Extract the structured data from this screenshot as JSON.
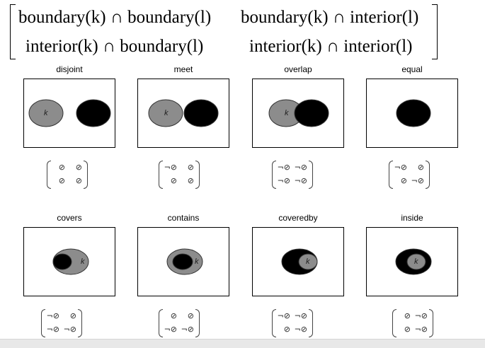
{
  "header": {
    "row0": [
      "boundary(k) ∩ boundary(l)",
      "boundary(k) ∩ interior(l)"
    ],
    "row1": [
      "interior(k) ∩ boundary(l)",
      "interior(k) ∩ interior(l)"
    ]
  },
  "object_label": "k",
  "panels": [
    {
      "title": "disjoint",
      "matrix": [
        "⊘",
        "⊘",
        "⊘",
        "⊘"
      ]
    },
    {
      "title": "meet",
      "matrix": [
        "¬⊘",
        "⊘",
        "⊘",
        "⊘"
      ]
    },
    {
      "title": "overlap",
      "matrix": [
        "¬⊘",
        "¬⊘",
        "¬⊘",
        "¬⊘"
      ]
    },
    {
      "title": "equal",
      "matrix": [
        "¬⊘",
        "⊘",
        "⊘",
        "¬⊘"
      ]
    },
    {
      "title": "covers",
      "matrix": [
        "¬⊘",
        "⊘",
        "¬⊘",
        "¬⊘"
      ]
    },
    {
      "title": "contains",
      "matrix": [
        "⊘",
        "⊘",
        "¬⊘",
        "¬⊘"
      ]
    },
    {
      "title": "coveredby",
      "matrix": [
        "¬⊘",
        "¬⊘",
        "⊘",
        "¬⊘"
      ]
    },
    {
      "title": "inside",
      "matrix": [
        "⊘",
        "¬⊘",
        "⊘",
        "¬⊘"
      ]
    }
  ],
  "colors": {
    "gray_region": "#8c8c8c",
    "black_region": "#000000"
  }
}
